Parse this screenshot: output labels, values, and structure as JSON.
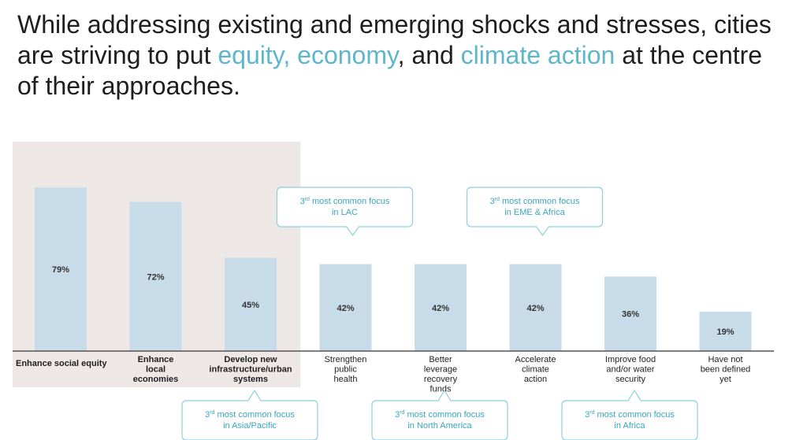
{
  "headline": {
    "part1": "While addressing existing and emerging shocks and stresses, cities are striving to put ",
    "accent1": "equity, economy",
    "part2": ", and ",
    "accent2": "climate action",
    "part3": " at the centre of their approaches."
  },
  "colors": {
    "bar": "#c7dbe9",
    "highlight_panel": "#ede7e5",
    "accent": "#5fb6c9",
    "callout_border": "#8ecfdc",
    "callout_text": "#3aa6bd",
    "axis": "#555555",
    "text": "#1e1e1e"
  },
  "chart_data": {
    "type": "bar",
    "categories": [
      [
        "Enhance social equity"
      ],
      [
        "Enhance",
        "local",
        "economies"
      ],
      [
        "Develop new",
        "infrastructure/urban",
        "systems"
      ],
      [
        "Strengthen",
        "public",
        "health"
      ],
      [
        "Better",
        "leverage",
        "recovery",
        "funds"
      ],
      [
        "Accelerate",
        "climate",
        "action"
      ],
      [
        "Improve food",
        "and/or water",
        "security"
      ],
      [
        "Have not",
        "been defined",
        "yet"
      ]
    ],
    "values": [
      79,
      72,
      45,
      42,
      42,
      42,
      36,
      19
    ],
    "value_labels": [
      "79%",
      "72%",
      "45%",
      "42%",
      "42%",
      "42%",
      "36%",
      "19%"
    ],
    "highlighted_categories": [
      0,
      1,
      2
    ],
    "ylim": [
      0,
      100
    ],
    "callouts": [
      {
        "sup": "rd",
        "line1": "most common focus",
        "line2": "in LAC",
        "category": 3,
        "position": "above"
      },
      {
        "sup": "rd",
        "line1": "most common focus",
        "line2": "in EME & Africa",
        "category": 5,
        "position": "above"
      },
      {
        "sup": "rd",
        "line1": "most common focus",
        "line2": "in Asia/Pacific",
        "category": 2,
        "position": "below"
      },
      {
        "sup": "rd",
        "line1": "most common focus",
        "line2": "in North America",
        "category": 4,
        "position": "below"
      },
      {
        "sup": "rd",
        "line1": "most common focus",
        "line2": "in Africa",
        "category": 6,
        "position": "below"
      }
    ],
    "callout_prefix": "3"
  }
}
